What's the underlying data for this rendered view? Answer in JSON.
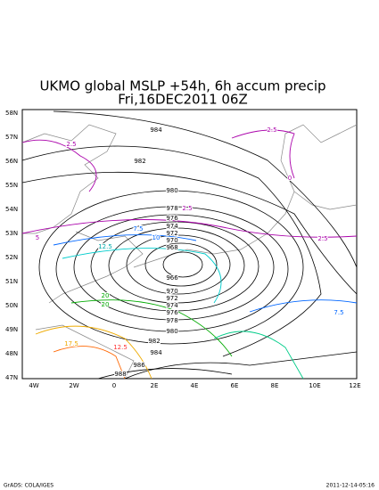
{
  "header": {
    "title": "UKMO global MSLP +54h, 6h accum precip",
    "subtitle": "Fri,16DEC2011 06Z"
  },
  "map": {
    "lat_labels": [
      "58N",
      "57N",
      "56N",
      "55N",
      "54N",
      "53N",
      "52N",
      "51N",
      "50N",
      "49N",
      "48N",
      "47N"
    ],
    "lon_labels": [
      "4W",
      "2W",
      "0",
      "2E",
      "4E",
      "6E",
      "8E",
      "10E",
      "12E"
    ],
    "isobar_labels": [
      "984",
      "982",
      "980",
      "978",
      "976",
      "974",
      "972",
      "970",
      "968",
      "966",
      "970",
      "972",
      "974",
      "976",
      "978",
      "980",
      "982",
      "984",
      "986",
      "988"
    ],
    "precip_labels": [
      "2.5",
      "2.5",
      "0",
      "2.5",
      "2.5",
      "7.5",
      "10",
      "12.5",
      "7.5",
      "20",
      "20",
      "5",
      "17.5",
      "12.5"
    ]
  },
  "footer": {
    "left": "GrADS: COLA/IGES",
    "right": "2011-12-14-05:16"
  }
}
